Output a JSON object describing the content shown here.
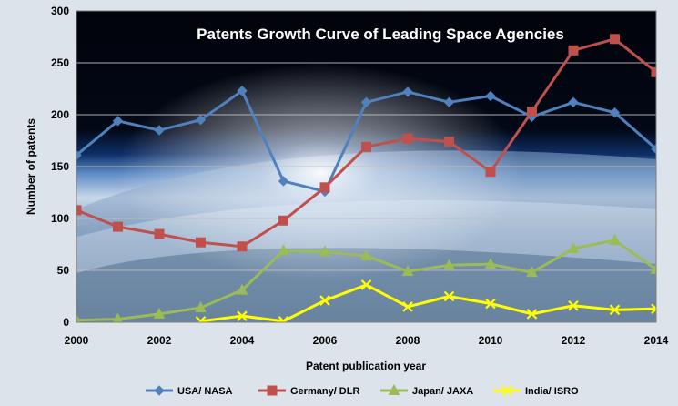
{
  "chart_data": {
    "type": "line",
    "title": "Patents Growth  Curve of Leading Space Agencies",
    "xlabel": "Patent publication year",
    "ylabel": "Number of patents",
    "xlim": [
      2000,
      2014
    ],
    "ylim": [
      0,
      300
    ],
    "x_ticks": [
      "2000",
      "2002",
      "2004",
      "2006",
      "2008",
      "2010",
      "2012",
      "2014"
    ],
    "y_ticks": [
      "0",
      "50",
      "100",
      "150",
      "200",
      "250",
      "300"
    ],
    "grid": true,
    "legend_position": "bottom",
    "series": [
      {
        "name": "USA/ NASA",
        "color": "#4f81bd",
        "marker": "diamond",
        "x": [
          2000,
          2001,
          2002,
          2003,
          2004,
          2005,
          2006,
          2007,
          2008,
          2009,
          2010,
          2011,
          2012,
          2013,
          2014
        ],
        "values": [
          161,
          194,
          185,
          195,
          223,
          136,
          126,
          212,
          222,
          212,
          218,
          198,
          212,
          202,
          167
        ]
      },
      {
        "name": "Germany/ DLR",
        "color": "#c0504d",
        "marker": "square",
        "x": [
          2000,
          2001,
          2002,
          2003,
          2004,
          2005,
          2006,
          2007,
          2008,
          2009,
          2010,
          2011,
          2012,
          2013,
          2014
        ],
        "values": [
          108,
          92,
          85,
          77,
          73,
          98,
          130,
          169,
          177,
          174,
          145,
          203,
          262,
          273,
          241
        ]
      },
      {
        "name": "Japan/ JAXA",
        "color": "#9bbb59",
        "marker": "triangle",
        "x": [
          2000,
          2001,
          2002,
          2003,
          2004,
          2005,
          2006,
          2007,
          2008,
          2009,
          2010,
          2011,
          2012,
          2013,
          2014
        ],
        "values": [
          2,
          3,
          8,
          14,
          31,
          69,
          68,
          64,
          49,
          55,
          56,
          48,
          71,
          79,
          51
        ]
      },
      {
        "name": "India/ ISRO",
        "color": "#ffff00",
        "marker": "x",
        "x": [
          2003,
          2004,
          2005,
          2006,
          2007,
          2008,
          2009,
          2010,
          2011,
          2012,
          2013,
          2014
        ],
        "values": [
          1,
          6,
          1,
          21,
          36,
          15,
          25,
          18,
          8,
          16,
          12,
          13
        ]
      }
    ]
  }
}
